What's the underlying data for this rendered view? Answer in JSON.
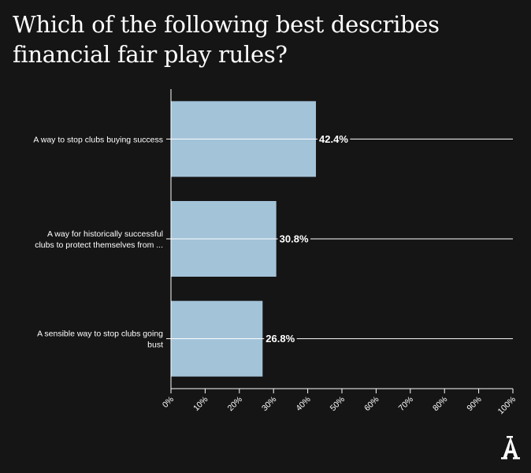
{
  "chart_data": {
    "type": "bar",
    "orientation": "horizontal",
    "title": "Which of the following best describes financial fair play rules?",
    "categories": [
      "A way to stop clubs buying success",
      "A way for historically successful clubs to protect themselves from ...",
      "A sensible way to stop clubs going bust"
    ],
    "category_lines": [
      [
        "A way to stop clubs buying success"
      ],
      [
        "A way for historically successful",
        "clubs to protect themselves from ..."
      ],
      [
        "A sensible way to stop clubs going",
        "bust"
      ]
    ],
    "values": [
      42.4,
      30.8,
      26.8
    ],
    "value_labels": [
      "42.4%",
      "30.8%",
      "26.8%"
    ],
    "xlim": [
      0,
      100
    ],
    "x_ticks": [
      "0%",
      "10%",
      "20%",
      "30%",
      "40%",
      "50%",
      "60%",
      "70%",
      "80%",
      "90%",
      "100%"
    ],
    "bar_color": "#a3c3d9",
    "grid": false
  },
  "logo": {
    "icon": "athletic-logo-icon"
  }
}
